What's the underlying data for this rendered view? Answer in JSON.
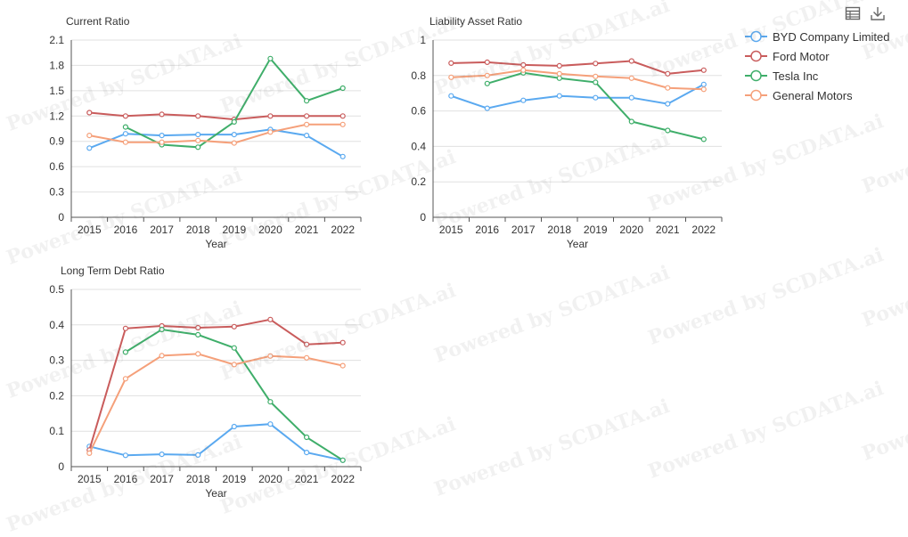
{
  "watermark": "Powered by SCDATA.ai",
  "toolbar": {
    "data_view_icon": "table-icon",
    "download_icon": "download-icon"
  },
  "legend": [
    {
      "name": "BYD Company Limited",
      "color": "#5aa9f0"
    },
    {
      "name": "Ford Motor",
      "color": "#c95c5c"
    },
    {
      "name": "Tesla Inc",
      "color": "#3fae6a"
    },
    {
      "name": "General Motors",
      "color": "#f5a07a"
    }
  ],
  "chart_data": [
    {
      "type": "line",
      "title": "Current Ratio",
      "xlabel": "Year",
      "ylabel": "",
      "categories": [
        "2015",
        "2016",
        "2017",
        "2018",
        "2019",
        "2020",
        "2021",
        "2022"
      ],
      "ylim": [
        0,
        2.1
      ],
      "yticks": [
        "0",
        "0.3",
        "0.6",
        "0.9",
        "1.2",
        "1.5",
        "1.8",
        "2.1"
      ],
      "grid": true,
      "series": [
        {
          "name": "BYD Company Limited",
          "color": "#5aa9f0",
          "values": [
            0.82,
            0.99,
            0.97,
            0.98,
            0.98,
            1.04,
            0.97,
            0.72
          ]
        },
        {
          "name": "Ford Motor",
          "color": "#c95c5c",
          "values": [
            1.24,
            1.2,
            1.22,
            1.2,
            1.16,
            1.2,
            1.2,
            1.2
          ]
        },
        {
          "name": "Tesla Inc",
          "color": "#3fae6a",
          "values": [
            null,
            1.07,
            0.86,
            0.83,
            1.13,
            1.88,
            1.38,
            1.53
          ]
        },
        {
          "name": "General Motors",
          "color": "#f5a07a",
          "values": [
            0.97,
            0.89,
            0.89,
            0.91,
            0.88,
            1.01,
            1.1,
            1.1
          ]
        }
      ]
    },
    {
      "type": "line",
      "title": "Liability Asset Ratio",
      "xlabel": "Year",
      "ylabel": "",
      "categories": [
        "2015",
        "2016",
        "2017",
        "2018",
        "2019",
        "2020",
        "2021",
        "2022"
      ],
      "ylim": [
        0,
        1
      ],
      "yticks": [
        "0",
        "0.2",
        "0.4",
        "0.6",
        "0.8",
        "1"
      ],
      "grid": true,
      "series": [
        {
          "name": "BYD Company Limited",
          "color": "#5aa9f0",
          "values": [
            0.685,
            0.615,
            0.66,
            0.685,
            0.675,
            0.675,
            0.64,
            0.75
          ]
        },
        {
          "name": "Ford Motor",
          "color": "#c95c5c",
          "values": [
            0.87,
            0.875,
            0.86,
            0.855,
            0.868,
            0.882,
            0.81,
            0.83
          ]
        },
        {
          "name": "Tesla Inc",
          "color": "#3fae6a",
          "values": [
            null,
            0.755,
            0.815,
            0.785,
            0.762,
            0.54,
            0.49,
            0.44
          ]
        },
        {
          "name": "General Motors",
          "color": "#f5a07a",
          "values": [
            0.79,
            0.8,
            0.83,
            0.81,
            0.795,
            0.785,
            0.73,
            0.722
          ]
        }
      ]
    },
    {
      "type": "line",
      "title": "Long Term Debt Ratio",
      "xlabel": "Year",
      "ylabel": "",
      "categories": [
        "2015",
        "2016",
        "2017",
        "2018",
        "2019",
        "2020",
        "2021",
        "2022"
      ],
      "ylim": [
        0,
        0.5
      ],
      "yticks": [
        "0",
        "0.1",
        "0.2",
        "0.3",
        "0.4",
        "0.5"
      ],
      "grid": true,
      "series": [
        {
          "name": "BYD Company Limited",
          "color": "#5aa9f0",
          "values": [
            0.057,
            0.032,
            0.035,
            0.033,
            0.113,
            0.12,
            0.04,
            0.018
          ]
        },
        {
          "name": "Ford Motor",
          "color": "#c95c5c",
          "values": [
            0.047,
            0.39,
            0.397,
            0.392,
            0.395,
            0.415,
            0.345,
            0.35
          ]
        },
        {
          "name": "Tesla Inc",
          "color": "#3fae6a",
          "values": [
            null,
            0.323,
            0.387,
            0.372,
            0.335,
            0.183,
            0.083,
            0.018
          ]
        },
        {
          "name": "General Motors",
          "color": "#f5a07a",
          "values": [
            0.038,
            0.248,
            0.313,
            0.318,
            0.288,
            0.312,
            0.307,
            0.285
          ]
        }
      ]
    }
  ]
}
